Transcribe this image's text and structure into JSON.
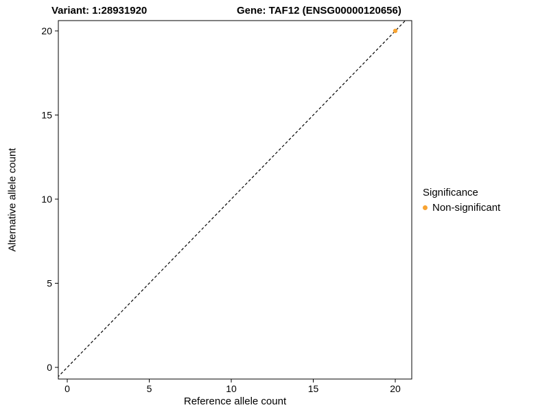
{
  "chart_data": {
    "type": "scatter",
    "title_left": "Variant: 1:28931920",
    "title_right": "Gene: TAF12 (ENSG00000120656)",
    "xlabel": "Reference allele count",
    "ylabel": "Alternative allele count",
    "xlim": [
      -0.6,
      21.2
    ],
    "ylim": [
      -0.6,
      21.2
    ],
    "xticks": [
      0,
      5,
      10,
      15,
      20
    ],
    "yticks": [
      0,
      5,
      10,
      15,
      20
    ],
    "grid": false,
    "panel_border": true,
    "identity_line": {
      "style": "dashed",
      "color": "#000000",
      "from": [
        -0.6,
        -0.6
      ],
      "to": [
        21.2,
        21.2
      ]
    },
    "series": [
      {
        "name": "Non-significant",
        "color": "#F8A331",
        "points": [
          {
            "x": 20,
            "y": 20
          }
        ]
      }
    ],
    "legend": {
      "title": "Significance",
      "position": "right",
      "entries": [
        {
          "label": "Non-significant",
          "color": "#F8A331"
        }
      ]
    }
  }
}
